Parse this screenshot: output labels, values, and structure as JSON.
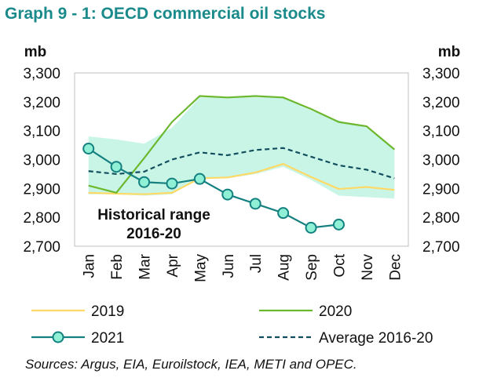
{
  "title": "Graph 9 - 1: OECD commercial oil stocks",
  "source": "Sources: Argus, EIA, Euroilstock, IEA, METI and OPEC.",
  "chart_data": {
    "type": "line",
    "categories": [
      "Jan",
      "Feb",
      "Mar",
      "Apr",
      "May",
      "Jun",
      "Jul",
      "Aug",
      "Sep",
      "Oct",
      "Nov",
      "Dec"
    ],
    "ylabel_left": "mb",
    "ylabel_right": "mb",
    "ylim": [
      2700,
      3300
    ],
    "yticks": [
      2700,
      2800,
      2900,
      3000,
      3100,
      3200,
      3300
    ],
    "ytick_labels": [
      "2,700",
      "2,800",
      "2,900",
      "3,000",
      "3,100",
      "3,200",
      "3,300"
    ],
    "grid": false,
    "range_band": {
      "label_line1": "Historical range",
      "label_line2": "2016-20",
      "color": "#c9f5e6",
      "lower": [
        2880,
        2880,
        2875,
        2880,
        2935,
        2935,
        2950,
        2975,
        2930,
        2875,
        2870,
        2865
      ],
      "upper": [
        3080,
        3070,
        3055,
        3110,
        3215,
        3215,
        3215,
        3215,
        3170,
        3135,
        3110,
        3035
      ]
    },
    "series": [
      {
        "name": "2019",
        "color": "#ffd966",
        "style": "solid",
        "markers": false,
        "values": [
          2885,
          2882,
          2880,
          2885,
          2935,
          2938,
          2955,
          2985,
          2940,
          2898,
          2905,
          2895
        ]
      },
      {
        "name": "2020",
        "color": "#6bb82e",
        "style": "solid",
        "markers": false,
        "values": [
          2910,
          2885,
          3005,
          3130,
          3220,
          3215,
          3220,
          3215,
          3175,
          3130,
          3115,
          3035
        ]
      },
      {
        "name": "2021",
        "color": "#148080",
        "style": "solid",
        "markers": true,
        "values": [
          3038,
          2975,
          2922,
          2917,
          2933,
          2879,
          2847,
          2815,
          2764,
          2775,
          null,
          null
        ]
      },
      {
        "name": "Average 2016-20",
        "color": "#124e5e",
        "style": "dashed",
        "markers": false,
        "values": [
          2960,
          2950,
          2958,
          3000,
          3025,
          3015,
          3033,
          3040,
          3010,
          2980,
          2965,
          2935
        ]
      }
    ],
    "legend": "bottom"
  }
}
